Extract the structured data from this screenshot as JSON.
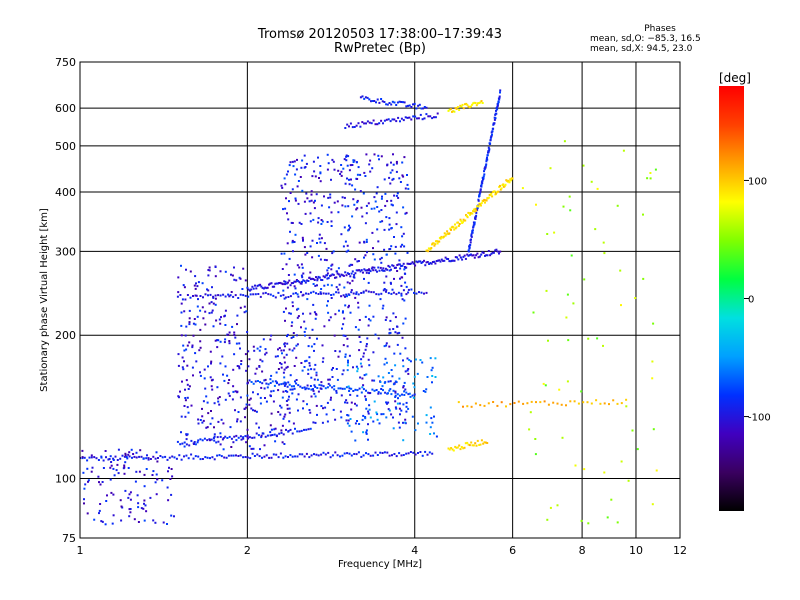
{
  "chart_data": {
    "type": "scatter",
    "title": "Tromsø 20120503 17:38:00–17:39:43",
    "subtitle": "RwPretec (Bp)",
    "xlabel": "Frequency [MHz]",
    "ylabel": "Stationary phase Virtual Height [km]",
    "xscale": "log",
    "yscale": "log",
    "xlim": [
      1,
      12
    ],
    "ylim": [
      75,
      750
    ],
    "x_ticks": [
      1,
      2,
      4,
      6,
      8,
      10,
      12
    ],
    "y_ticks": [
      75,
      100,
      200,
      300,
      400,
      500,
      600,
      750
    ],
    "grid": true,
    "phases_box": {
      "header": "Phases",
      "line1": "mean, sd,O: −85.3, 16.5",
      "line2": "mean, sd,X:  94.5, 23.0"
    },
    "colorbar": {
      "unit": "[deg]",
      "range": [
        -180,
        180
      ],
      "ticks": [
        100,
        0,
        -100
      ],
      "colors": [
        "#000000",
        "#3a0060",
        "#4000c0",
        "#0030ff",
        "#00a0ff",
        "#00e0e0",
        "#00ff40",
        "#80ff00",
        "#ffff00",
        "#ffa000",
        "#ff4000",
        "#ff0000"
      ]
    },
    "traces": [
      {
        "name": "O-mode 110 km",
        "x_range": [
          1.0,
          4.3
        ],
        "h_start": 110,
        "h_end": 113,
        "phase": -95,
        "n": 150
      },
      {
        "name": "O-mode 120 km",
        "x_range": [
          1.5,
          2.6
        ],
        "h_start": 118,
        "h_end": 127,
        "phase": -90,
        "n": 60
      },
      {
        "name": "O-mode F2 lower",
        "x_range": [
          2.0,
          5.7
        ],
        "h_start": 250,
        "h_end": 300,
        "phase": -100,
        "n": 200
      },
      {
        "name": "O-mode cusp",
        "x_range": [
          5.0,
          5.7
        ],
        "h_start": 300,
        "h_end": 650,
        "phase": -90,
        "n": 120
      },
      {
        "name": "X-mode F2",
        "x_range": [
          4.2,
          6.0
        ],
        "h_start": 300,
        "h_end": 430,
        "phase": 95,
        "n": 110
      },
      {
        "name": "X-mode top",
        "x_range": [
          4.6,
          5.3
        ],
        "h_start": 590,
        "h_end": 620,
        "phase": 90,
        "n": 30
      },
      {
        "name": "Echo 245 km",
        "x_range": [
          1.5,
          4.2
        ],
        "h_start": 240,
        "h_end": 247,
        "phase": -95,
        "n": 100
      },
      {
        "name": "Echo 550 km",
        "x_range": [
          3.0,
          4.4
        ],
        "h_start": 550,
        "h_end": 580,
        "phase": -100,
        "n": 50
      },
      {
        "name": "Echo 620 km",
        "x_range": [
          3.2,
          4.2
        ],
        "h_start": 630,
        "h_end": 600,
        "phase": -90,
        "n": 40
      },
      {
        "name": "Echo 160 km",
        "x_range": [
          2.0,
          4.0
        ],
        "h_start": 160,
        "h_end": 150,
        "phase": -80,
        "n": 80
      },
      {
        "name": "X echo 120 km",
        "x_range": [
          4.6,
          5.4
        ],
        "h_start": 115,
        "h_end": 120,
        "phase": 95,
        "n": 30
      },
      {
        "name": "X echo 145 km",
        "x_range": [
          4.8,
          9.6
        ],
        "h_start": 143,
        "h_end": 145,
        "phase": 110,
        "n": 40
      }
    ],
    "clouds": [
      {
        "x_range": [
          2.3,
          3.9
        ],
        "h_range": [
          130,
          480
        ],
        "phase": -95,
        "n": 700
      },
      {
        "x_range": [
          1.5,
          2.4
        ],
        "h_range": [
          115,
          200
        ],
        "phase": -100,
        "n": 260
      },
      {
        "x_range": [
          1.0,
          1.5
        ],
        "h_range": [
          80,
          115
        ],
        "phase": -100,
        "n": 120
      },
      {
        "x_range": [
          1.5,
          2.0
        ],
        "h_range": [
          200,
          280
        ],
        "phase": -100,
        "n": 90
      },
      {
        "x_range": [
          6.2,
          11.0
        ],
        "h_range": [
          80,
          520
        ],
        "phase": 60,
        "n": 70
      },
      {
        "x_range": [
          3.0,
          4.4
        ],
        "h_range": [
          120,
          180
        ],
        "phase": -60,
        "n": 90
      }
    ]
  }
}
